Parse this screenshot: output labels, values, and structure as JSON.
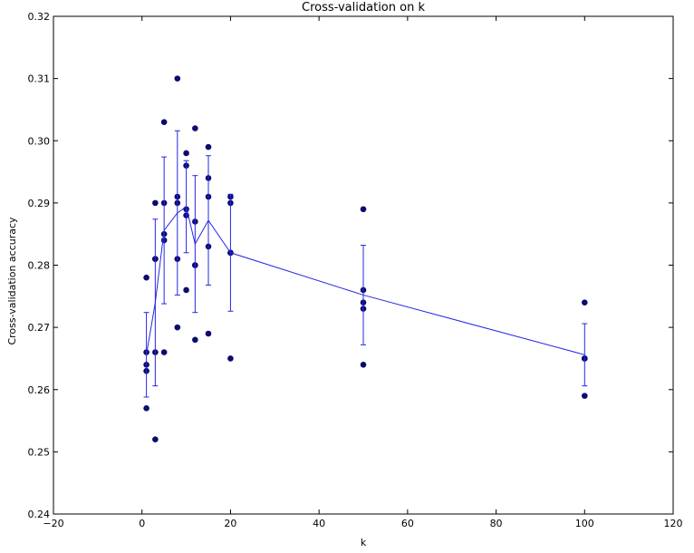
{
  "chart_data": {
    "type": "scatter",
    "title": "Cross-validation on k",
    "xlabel": "k",
    "ylabel": "Cross-validation accuracy",
    "xlim": [
      -20,
      120
    ],
    "ylim": [
      0.24,
      0.32
    ],
    "xticks": [
      "−20",
      "0",
      "20",
      "40",
      "60",
      "80",
      "100",
      "120"
    ],
    "yticks": [
      "0.24",
      "0.25",
      "0.26",
      "0.27",
      "0.28",
      "0.29",
      "0.30",
      "0.31",
      "0.32"
    ],
    "grid": false,
    "legend": "none",
    "colors": {
      "points": "#0b0b6e",
      "line": "#2626e6",
      "errorbars": "#2626e6"
    },
    "points": [
      {
        "k": 1,
        "values": [
          0.263,
          0.257,
          0.264,
          0.278,
          0.266
        ]
      },
      {
        "k": 3,
        "values": [
          0.252,
          0.281,
          0.266,
          0.29,
          0.281
        ]
      },
      {
        "k": 5,
        "values": [
          0.266,
          0.284,
          0.285,
          0.29,
          0.303
        ]
      },
      {
        "k": 8,
        "values": [
          0.27,
          0.281,
          0.29,
          0.291,
          0.31
        ]
      },
      {
        "k": 10,
        "values": [
          0.276,
          0.288,
          0.289,
          0.296,
          0.298
        ]
      },
      {
        "k": 12,
        "values": [
          0.268,
          0.28,
          0.28,
          0.287,
          0.302
        ]
      },
      {
        "k": 15,
        "values": [
          0.269,
          0.283,
          0.291,
          0.294,
          0.299
        ]
      },
      {
        "k": 20,
        "values": [
          0.265,
          0.282,
          0.29,
          0.291,
          0.282
        ]
      },
      {
        "k": 50,
        "values": [
          0.264,
          0.273,
          0.274,
          0.276,
          0.289
        ]
      },
      {
        "k": 100,
        "values": [
          0.259,
          0.265,
          0.265,
          0.274,
          0.265
        ]
      }
    ],
    "mean_series": {
      "k": [
        1,
        3,
        5,
        8,
        10,
        12,
        15,
        20,
        50,
        100
      ],
      "mean": [
        0.2656,
        0.274,
        0.2856,
        0.2884,
        0.2894,
        0.2834,
        0.2872,
        0.282,
        0.2752,
        0.2656
      ],
      "std": [
        0.0068,
        0.0134,
        0.0118,
        0.0132,
        0.0074,
        0.011,
        0.0104,
        0.0094,
        0.008,
        0.005
      ]
    }
  }
}
